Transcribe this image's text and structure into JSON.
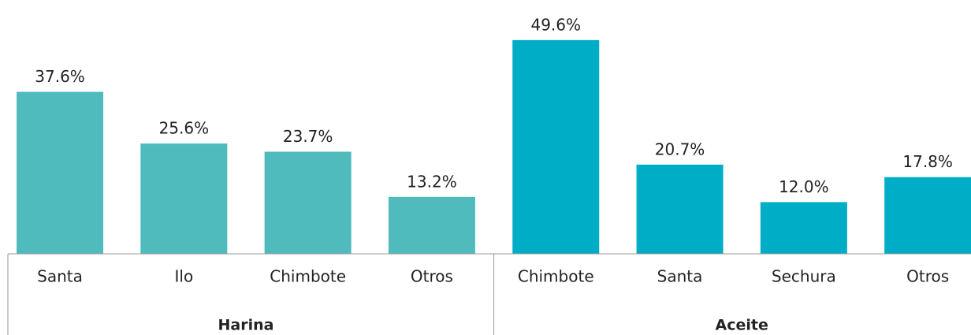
{
  "chart_data": {
    "type": "bar",
    "groups": [
      {
        "name": "Harina",
        "color": "#4fbbbd",
        "categories": [
          "Santa",
          "Ilo",
          "Chimbote",
          "Otros"
        ],
        "values": [
          37.6,
          25.6,
          23.7,
          13.2
        ],
        "value_labels": [
          "37.6%",
          "25.6%",
          "23.7%",
          "13.2%"
        ]
      },
      {
        "name": "Aceite",
        "color": "#00adc6",
        "categories": [
          "Chimbote",
          "Santa",
          "Sechura",
          "Otros"
        ],
        "values": [
          49.6,
          20.7,
          12.0,
          17.8
        ],
        "value_labels": [
          "49.6%",
          "20.7%",
          "12.0%",
          "17.8%"
        ]
      }
    ],
    "ylim": [
      0,
      50.5
    ]
  }
}
